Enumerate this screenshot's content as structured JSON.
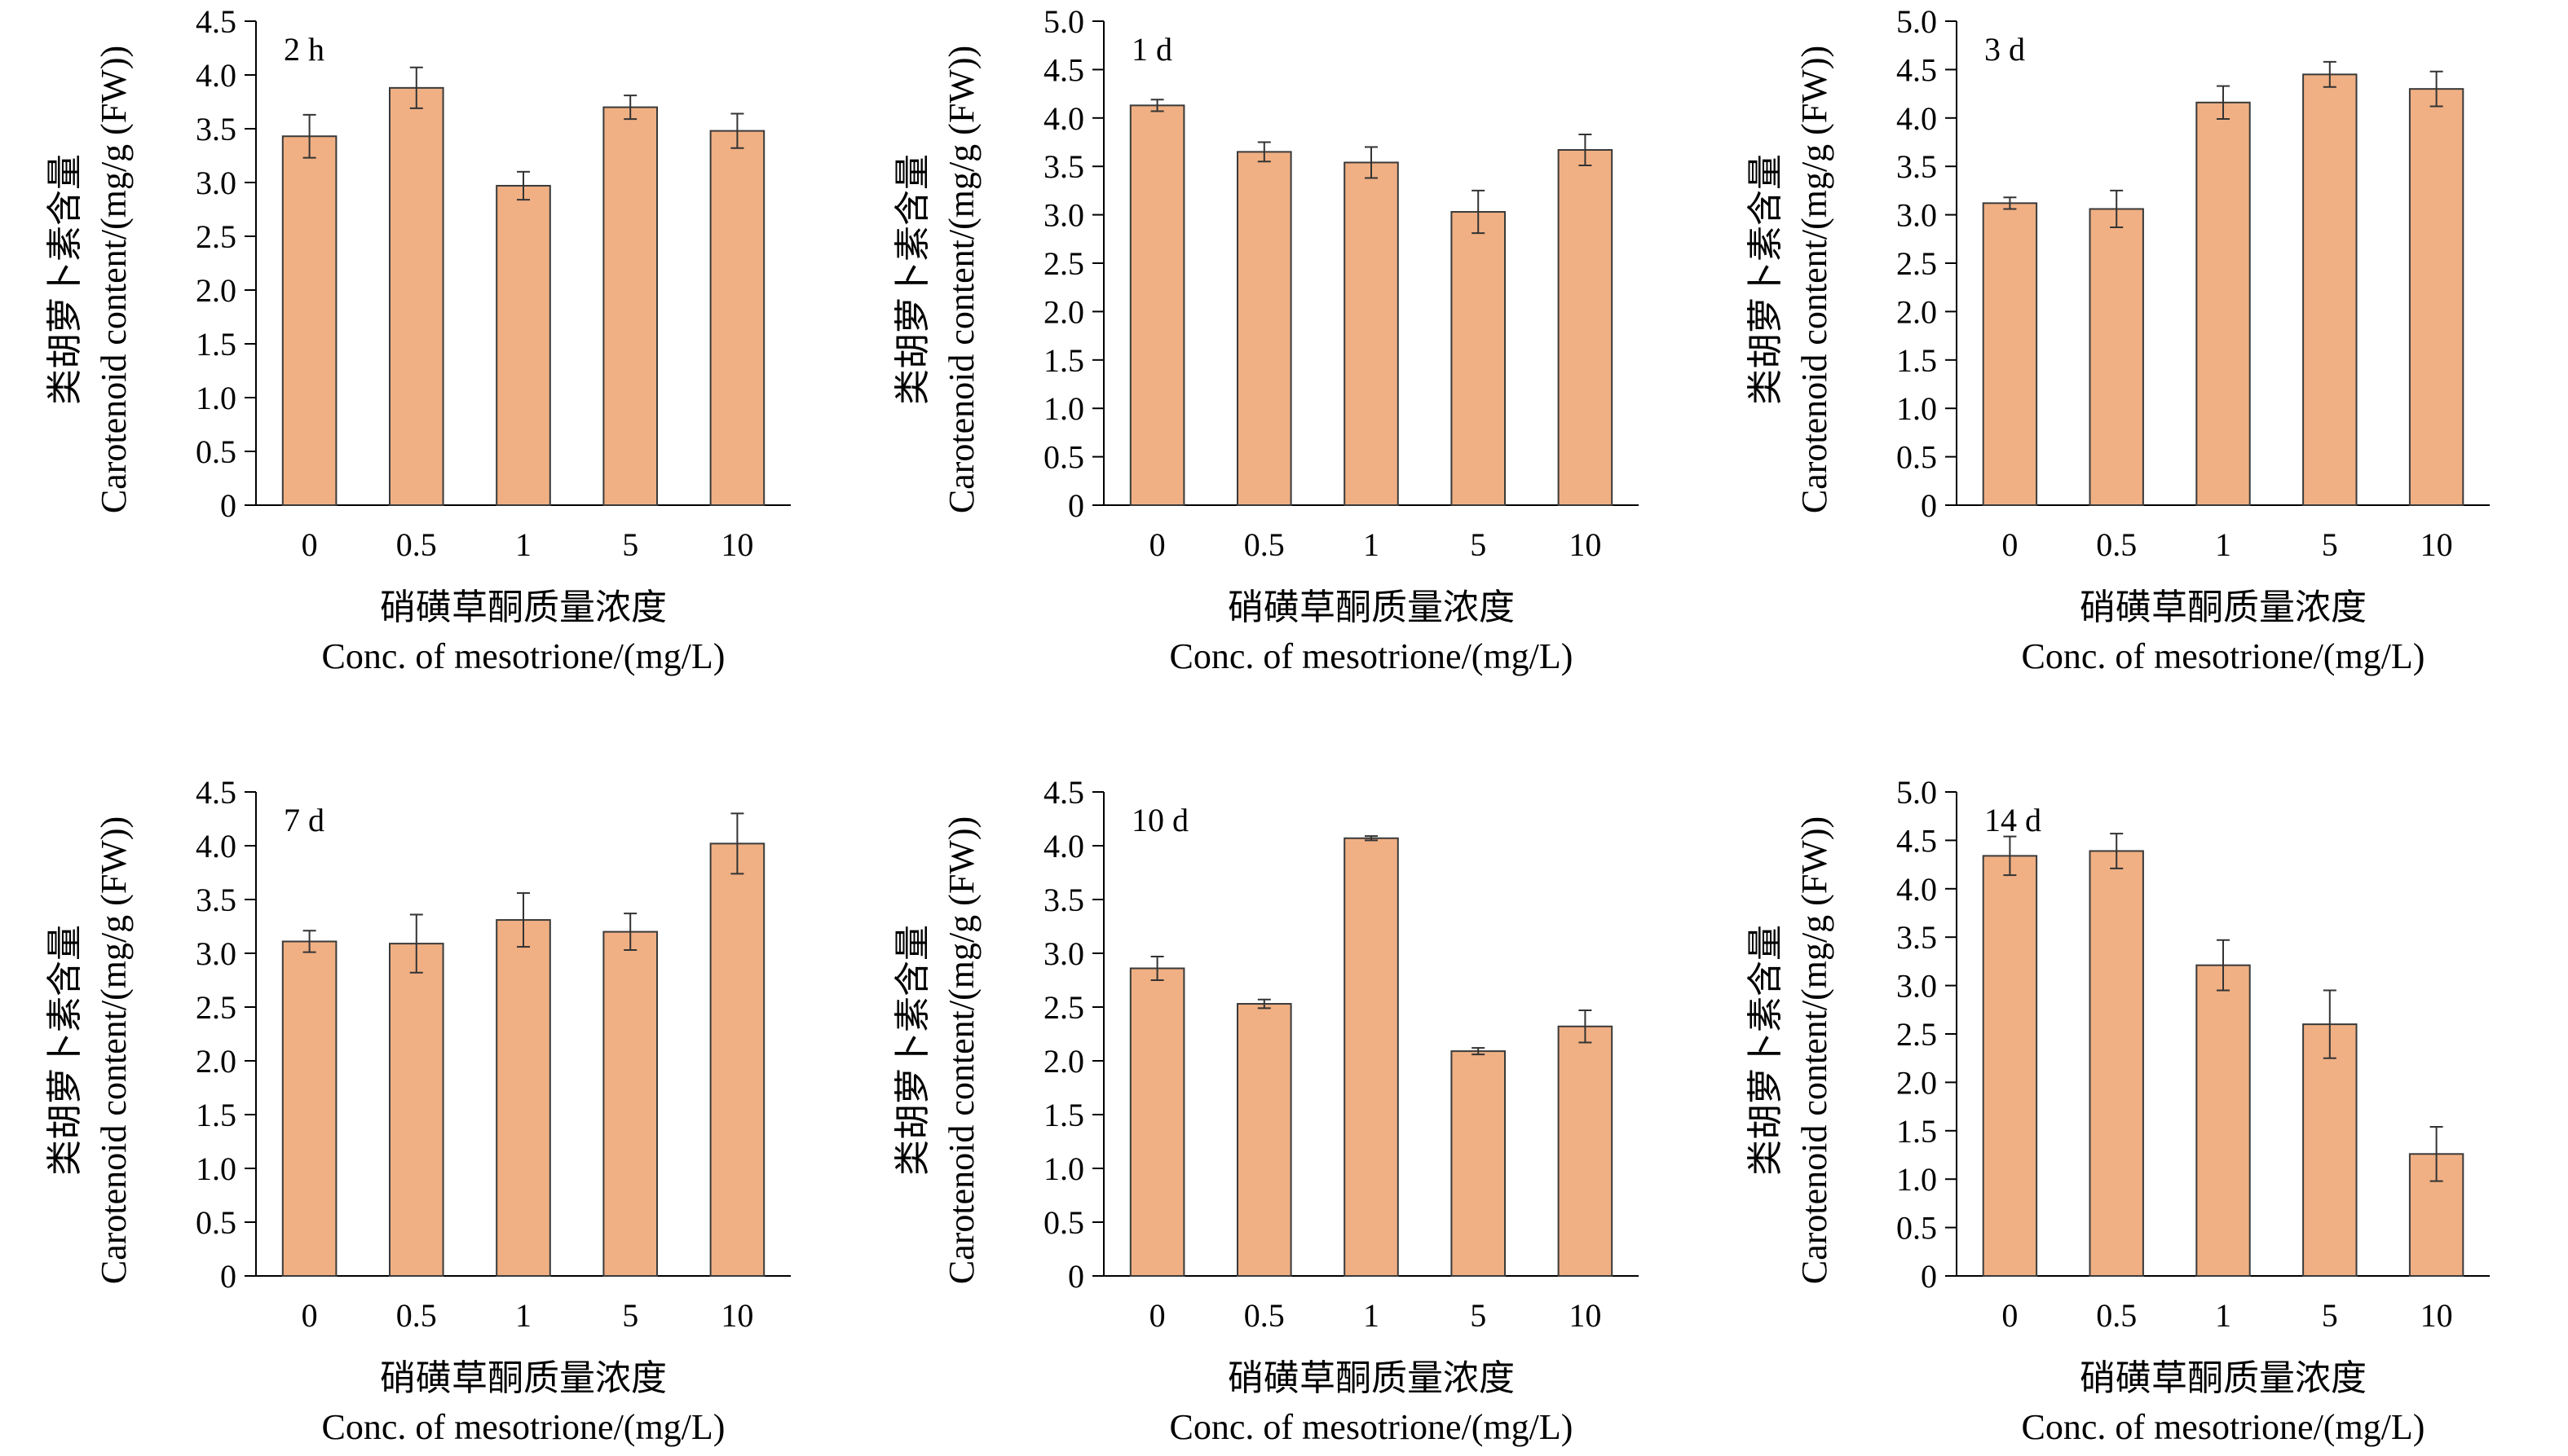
{
  "colors": {
    "bar_fill": "#F0B084",
    "bar_stroke": "#3a3a3a",
    "axis": "#000000"
  },
  "chart_data": [
    {
      "type": "bar",
      "panel_label": "2 h",
      "categories": [
        "0",
        "0.5",
        "1",
        "5",
        "10"
      ],
      "values": [
        3.43,
        3.88,
        2.97,
        3.7,
        3.48
      ],
      "errors": [
        0.2,
        0.19,
        0.13,
        0.11,
        0.16
      ],
      "ylim": [
        0,
        4.5
      ],
      "yticks": [
        "0",
        "0.5",
        "1.0",
        "1.5",
        "2.0",
        "2.5",
        "3.0",
        "3.5",
        "4.0",
        "4.5"
      ],
      "ylabel_cn": "类胡萝卜素含量",
      "ylabel_en": "Carotenoid content/(mg/g (FW))",
      "xlabel_cn": "硝磺草酮质量浓度",
      "xlabel_en": "Conc. of mesotrione/(mg/L)"
    },
    {
      "type": "bar",
      "panel_label": "1 d",
      "categories": [
        "0",
        "0.5",
        "1",
        "5",
        "10"
      ],
      "values": [
        4.13,
        3.65,
        3.54,
        3.03,
        3.67
      ],
      "errors": [
        0.06,
        0.1,
        0.16,
        0.22,
        0.16
      ],
      "ylim": [
        0,
        5.0
      ],
      "yticks": [
        "0",
        "0.5",
        "1.0",
        "1.5",
        "2.0",
        "2.5",
        "3.0",
        "3.5",
        "4.0",
        "4.5",
        "5.0"
      ],
      "ylabel_cn": "类胡萝卜素含量",
      "ylabel_en": "Carotenoid content/(mg/g (FW))",
      "xlabel_cn": "硝磺草酮质量浓度",
      "xlabel_en": "Conc. of mesotrione/(mg/L)"
    },
    {
      "type": "bar",
      "panel_label": "3 d",
      "categories": [
        "0",
        "0.5",
        "1",
        "5",
        "10"
      ],
      "values": [
        3.12,
        3.06,
        4.16,
        4.45,
        4.3
      ],
      "errors": [
        0.06,
        0.19,
        0.17,
        0.13,
        0.18
      ],
      "ylim": [
        0,
        5.0
      ],
      "yticks": [
        "0",
        "0.5",
        "1.0",
        "1.5",
        "2.0",
        "2.5",
        "3.0",
        "3.5",
        "4.0",
        "4.5",
        "5.0"
      ],
      "ylabel_cn": "类胡萝卜素含量",
      "ylabel_en": "Carotenoid content/(mg/g (FW))",
      "xlabel_cn": "硝磺草酮质量浓度",
      "xlabel_en": "Conc. of mesotrione/(mg/L)"
    },
    {
      "type": "bar",
      "panel_label": "7 d",
      "categories": [
        "0",
        "0.5",
        "1",
        "5",
        "10"
      ],
      "values": [
        3.11,
        3.09,
        3.31,
        3.2,
        4.02
      ],
      "errors": [
        0.1,
        0.27,
        0.25,
        0.17,
        0.28
      ],
      "ylim": [
        0,
        4.5
      ],
      "yticks": [
        "0",
        "0.5",
        "1.0",
        "1.5",
        "2.0",
        "2.5",
        "3.0",
        "3.5",
        "4.0",
        "4.5"
      ],
      "ylabel_cn": "类胡萝卜素含量",
      "ylabel_en": "Carotenoid content/(mg/g (FW))",
      "xlabel_cn": "硝磺草酮质量浓度",
      "xlabel_en": "Conc. of mesotrione/(mg/L)"
    },
    {
      "type": "bar",
      "panel_label": "10 d",
      "categories": [
        "0",
        "0.5",
        "1",
        "5",
        "10"
      ],
      "values": [
        2.86,
        2.53,
        4.07,
        2.09,
        2.32
      ],
      "errors": [
        0.11,
        0.04,
        0.02,
        0.03,
        0.15
      ],
      "ylim": [
        0,
        4.5
      ],
      "yticks": [
        "0",
        "0.5",
        "1.0",
        "1.5",
        "2.0",
        "2.5",
        "3.0",
        "3.5",
        "4.0",
        "4.5"
      ],
      "ylabel_cn": "类胡萝卜素含量",
      "ylabel_en": "Carotenoid content/(mg/g (FW))",
      "xlabel_cn": "硝磺草酮质量浓度",
      "xlabel_en": "Conc. of mesotrione/(mg/L)"
    },
    {
      "type": "bar",
      "panel_label": "14 d",
      "categories": [
        "0",
        "0.5",
        "1",
        "5",
        "10"
      ],
      "values": [
        4.34,
        4.39,
        3.21,
        2.6,
        1.26
      ],
      "errors": [
        0.2,
        0.18,
        0.26,
        0.35,
        0.28
      ],
      "ylim": [
        0,
        5.0
      ],
      "yticks": [
        "0",
        "0.5",
        "1.0",
        "1.5",
        "2.0",
        "2.5",
        "3.0",
        "3.5",
        "4.0",
        "4.5",
        "5.0"
      ],
      "ylabel_cn": "类胡萝卜素含量",
      "ylabel_en": "Carotenoid content/(mg/g (FW))",
      "xlabel_cn": "硝磺草酮质量浓度",
      "xlabel_en": "Conc. of mesotrione/(mg/L)"
    }
  ]
}
